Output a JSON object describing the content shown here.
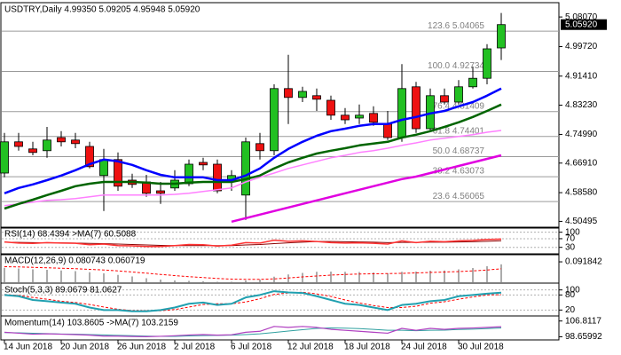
{
  "chart_data": [
    {
      "type": "candlestick",
      "title": "USDTRY,Daily 4.99350 5.09205 4.95948 5.05920",
      "categories": [
        "14 Jun 2018",
        null,
        null,
        null,
        "20 Jun 2018",
        null,
        null,
        null,
        "26 Jun 2018",
        null,
        null,
        null,
        "2 Jul 2018",
        null,
        null,
        null,
        "6 Jul 2018",
        null,
        null,
        null,
        "12 Jul 2018",
        null,
        null,
        null,
        "18 Jul 2018",
        null,
        null,
        null,
        "24 Jul 2018",
        null,
        null,
        null,
        "30 Jul 2018",
        null,
        null,
        null
      ],
      "open": [
        4.641,
        4.729,
        4.709,
        4.704,
        4.741,
        4.734,
        4.716,
        4.634,
        4.679,
        4.621,
        4.616,
        4.591,
        4.599,
        4.611,
        4.671,
        4.666,
        4.621,
        4.579,
        4.724,
        4.704,
        4.879,
        4.854,
        4.859,
        4.846,
        4.804,
        4.796,
        4.809,
        4.779,
        4.741,
        4.884,
        4.766,
        4.859,
        4.841,
        4.884,
        4.908,
        4.9935
      ],
      "high": [
        4.754,
        4.754,
        4.729,
        4.771,
        4.759,
        4.754,
        4.729,
        4.709,
        4.699,
        4.639,
        4.636,
        4.616,
        4.649,
        4.679,
        4.684,
        4.679,
        4.649,
        4.741,
        4.754,
        4.891,
        4.974,
        4.884,
        4.879,
        4.859,
        4.824,
        4.834,
        4.829,
        4.816,
        4.948,
        4.898,
        4.879,
        4.879,
        4.903,
        4.941,
        5.004,
        5.09205
      ],
      "low": [
        4.629,
        4.704,
        4.691,
        4.684,
        4.716,
        4.711,
        4.654,
        4.534,
        4.591,
        4.599,
        4.574,
        4.554,
        4.591,
        4.604,
        4.649,
        4.584,
        4.591,
        4.509,
        4.679,
        4.691,
        4.779,
        4.841,
        4.816,
        4.791,
        4.779,
        4.779,
        4.774,
        4.734,
        4.729,
        4.754,
        4.759,
        4.834,
        4.834,
        4.879,
        4.891,
        4.95948
      ],
      "close": [
        4.729,
        4.716,
        4.699,
        4.734,
        4.729,
        4.724,
        4.659,
        4.679,
        4.604,
        4.609,
        4.584,
        4.584,
        4.621,
        4.666,
        4.664,
        4.591,
        4.634,
        4.729,
        4.704,
        4.879,
        4.854,
        4.871,
        4.849,
        4.804,
        4.791,
        4.804,
        4.784,
        4.741,
        4.879,
        4.766,
        4.859,
        4.841,
        4.884,
        4.908,
        4.991,
        5.0592
      ],
      "up_color": "#22c022",
      "down_color": "#ee1111",
      "lines": [
        {
          "color": "#ff80ff",
          "width": 1.5,
          "values": [
            4.549,
            4.554,
            4.559,
            4.564,
            4.566,
            4.569,
            4.574,
            4.579,
            4.579,
            4.579,
            4.579,
            4.579,
            4.581,
            4.584,
            4.589,
            4.594,
            4.599,
            4.616,
            4.629,
            4.641,
            4.654,
            4.664,
            4.674,
            4.684,
            4.691,
            4.699,
            4.704,
            4.711,
            4.719,
            4.726,
            4.734,
            4.739,
            4.744,
            4.749,
            4.756,
            4.761
          ]
        },
        {
          "color": "#e000e0",
          "width": 2.5,
          "values": [
            null,
            null,
            null,
            null,
            null,
            null,
            null,
            null,
            null,
            null,
            null,
            null,
            null,
            null,
            null,
            null,
            4.504,
            4.514,
            4.524,
            4.534,
            4.544,
            4.554,
            4.564,
            4.574,
            4.584,
            4.594,
            4.604,
            4.614,
            4.624,
            4.631,
            4.641,
            4.651,
            4.661,
            4.671,
            4.681,
            4.691
          ]
        },
        {
          "color": "#006400",
          "width": 2.5,
          "values": [
            4.541,
            4.554,
            4.566,
            4.579,
            4.591,
            4.604,
            4.611,
            4.616,
            4.616,
            4.616,
            4.614,
            4.611,
            4.611,
            4.614,
            4.616,
            4.616,
            4.616,
            4.624,
            4.634,
            4.654,
            4.671,
            4.684,
            4.696,
            4.704,
            4.711,
            4.719,
            4.724,
            4.729,
            4.741,
            4.749,
            4.759,
            4.771,
            4.784,
            4.799,
            4.816,
            4.834
          ]
        },
        {
          "color": "#0000ff",
          "width": 2.5,
          "values": [
            4.584,
            4.599,
            4.609,
            4.621,
            4.634,
            4.649,
            4.666,
            4.679,
            4.674,
            4.664,
            4.649,
            4.636,
            4.629,
            4.629,
            4.629,
            4.621,
            4.621,
            4.634,
            4.654,
            4.684,
            4.709,
            4.729,
            4.746,
            4.759,
            4.766,
            4.774,
            4.779,
            4.779,
            4.791,
            4.799,
            4.809,
            4.816,
            4.829,
            4.841,
            4.859,
            4.879
          ]
        }
      ],
      "fib_levels": [
        {
          "label": "123.6 5.04065",
          "value": 5.04065
        },
        {
          "label": "100.0 4.92734",
          "value": 4.92734
        },
        {
          "label": "76.4 4.81409",
          "value": 4.81409
        },
        {
          "label": "61.8 4.74401",
          "value": 4.74401
        },
        {
          "label": "50.0 4.68737",
          "value": 4.68737
        },
        {
          "label": "38.2 4.63073",
          "value": 4.63073
        },
        {
          "label": "23.6 4.56065",
          "value": 4.56065
        }
      ],
      "last_price": {
        "value": 5.0592,
        "label": "5.05920"
      },
      "ylim": [
        4.4885,
        5.116
      ],
      "yticks": [
        {
          "value": 5.0807,
          "label": "5.08070"
        },
        {
          "value": 4.9972,
          "label": "4.99720"
        },
        {
          "value": 4.9141,
          "label": "4.91410"
        },
        {
          "value": 4.8323,
          "label": "4.83230"
        },
        {
          "value": 4.7499,
          "label": "4.74990"
        },
        {
          "value": 4.6691,
          "label": "4.66910"
        },
        {
          "value": 4.5858,
          "label": "4.58580"
        },
        4.50495
      ],
      "grid": false
    },
    {
      "type": "line",
      "title": "RSI(14) 68.4394 >MA(7) 60.5088",
      "ylim": [
        0,
        115
      ],
      "yticks": [
        100,
        70,
        30
      ],
      "grid": true,
      "lines": [
        {
          "color": "#8b0000",
          "width": 1,
          "values": [
            54,
            53,
            52,
            51,
            51,
            50,
            48,
            47,
            45,
            43,
            41,
            39,
            38,
            38,
            38,
            38,
            38,
            41,
            43,
            47,
            51,
            54,
            57,
            57,
            56,
            55,
            54,
            52,
            53,
            53,
            54,
            54,
            55,
            56,
            58,
            60.5088
          ]
        },
        {
          "color": "#ff3030",
          "width": 1.5,
          "values": [
            55,
            50,
            48,
            52,
            50,
            49,
            42,
            45,
            38,
            37,
            34,
            34,
            38,
            43,
            42,
            36,
            40,
            52,
            50,
            63,
            58,
            60,
            57,
            52,
            50,
            51,
            49,
            45,
            60,
            52,
            58,
            56,
            60,
            62,
            66,
            68.4394
          ]
        }
      ]
    },
    {
      "type": "bar",
      "title": "MACD(12,26,9) 0.080743 0.060719",
      "ylim": [
        0,
        0.12
      ],
      "yticks": [
        0.091842
      ],
      "grid": false,
      "color": "#909090",
      "values": [
        0.065,
        0.062,
        0.058,
        0.056,
        0.053,
        0.05,
        0.045,
        0.04,
        0.033,
        0.026,
        0.018,
        0.012,
        0.008,
        0.006,
        0.004,
        0.002,
        0.002,
        0.008,
        0.012,
        0.025,
        0.035,
        0.042,
        0.047,
        0.048,
        0.047,
        0.046,
        0.044,
        0.04,
        0.047,
        0.048,
        0.052,
        0.053,
        0.058,
        0.064,
        0.072,
        0.080743
      ],
      "lines": [
        {
          "color": "#ff0000",
          "width": 1,
          "dashed": true,
          "values": [
            0.07,
            0.069,
            0.067,
            0.065,
            0.063,
            0.061,
            0.058,
            0.055,
            0.051,
            0.046,
            0.041,
            0.035,
            0.03,
            0.025,
            0.021,
            0.017,
            0.014,
            0.013,
            0.013,
            0.015,
            0.019,
            0.024,
            0.028,
            0.032,
            0.035,
            0.037,
            0.038,
            0.039,
            0.04,
            0.042,
            0.044,
            0.046,
            0.048,
            0.051,
            0.055,
            0.060719
          ]
        }
      ]
    },
    {
      "type": "line",
      "title": "Stoch(5,3,3) 89.0679 81.0627",
      "ylim": [
        0,
        120
      ],
      "yticks": [
        100,
        80,
        20
      ],
      "grid": true,
      "lines": [
        {
          "color": "#ff0000",
          "width": 1,
          "dashed": true,
          "values": [
            82,
            78,
            70,
            63,
            55,
            50,
            42,
            32,
            23,
            18,
            17,
            17,
            22,
            32,
            42,
            45,
            45,
            52,
            65,
            82,
            88,
            91,
            84,
            74,
            60,
            48,
            38,
            30,
            30,
            35,
            47,
            53,
            63,
            72,
            80,
            81.0627
          ]
        },
        {
          "color": "#20a0b0",
          "width": 2,
          "values": [
            80,
            75,
            60,
            55,
            50,
            45,
            30,
            20,
            20,
            15,
            15,
            20,
            30,
            45,
            50,
            40,
            45,
            70,
            80,
            95,
            90,
            88,
            75,
            60,
            45,
            40,
            30,
            20,
            40,
            45,
            55,
            60,
            75,
            80,
            85,
            89.0679
          ]
        }
      ]
    },
    {
      "type": "line",
      "title": "Momentum(14) 103.8605 ->MA(7) 103.2159",
      "ylim": [
        97.5,
        108.5
      ],
      "yticks": [
        106.8117,
        98.65992
      ],
      "grid": false,
      "lines": [
        {
          "color": "#30a0a0",
          "width": 1,
          "values": [
            100.8,
            100.7,
            100.5,
            100.3,
            100.1,
            100,
            99.8,
            99.6,
            99.4,
            99.2,
            99,
            98.9,
            98.9,
            99.1,
            99.3,
            99.4,
            99.5,
            99.8,
            100.2,
            100.9,
            101.6,
            102.3,
            103,
            103.2,
            103.1,
            102.9,
            102.5,
            102,
            102,
            101.8,
            102,
            102.1,
            102.4,
            102.6,
            102.9,
            103.2159
          ]
        },
        {
          "color": "#b040c0",
          "width": 1.2,
          "values": [
            101,
            100.5,
            100,
            100.2,
            100,
            99.8,
            99.5,
            99,
            99,
            98.8,
            98.7,
            98.9,
            99.2,
            99.6,
            99.8,
            99.5,
            99.7,
            101,
            101.5,
            104,
            103.5,
            104,
            103.5,
            102.5,
            102,
            101.5,
            101,
            100.5,
            103,
            102,
            103,
            102.5,
            103,
            103.2,
            103.5,
            103.8605
          ]
        }
      ]
    }
  ]
}
